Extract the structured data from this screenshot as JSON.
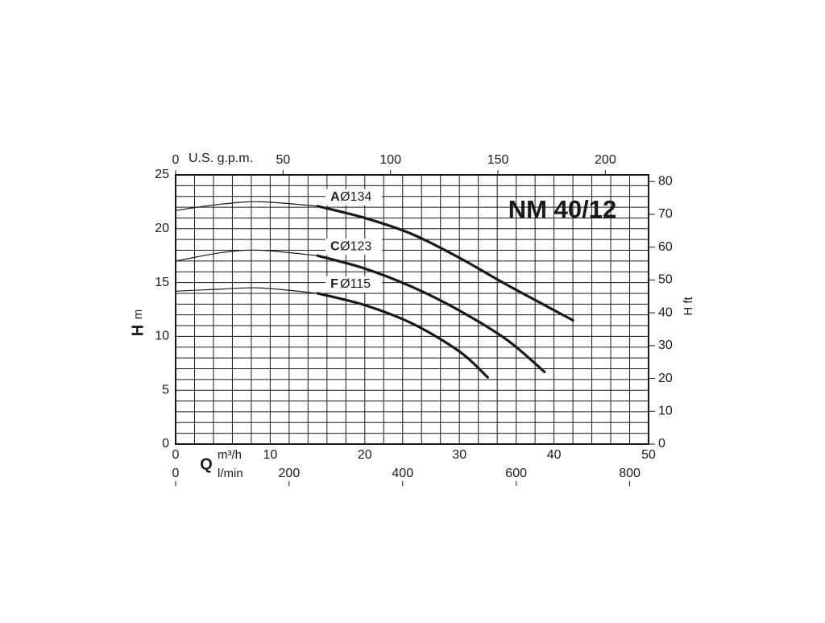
{
  "chart_data": {
    "type": "line",
    "title": "NM 40/12",
    "xlabel": "Q",
    "xunit": "m³/h",
    "ylabel": "H",
    "yunit": "m",
    "y2label": "H ft",
    "x2label": "U.S. g.p.m.",
    "x3label": "l/min",
    "xlim": [
      0,
      50
    ],
    "xticks": [
      0,
      10,
      20,
      30,
      40,
      50
    ],
    "ylim": [
      0,
      25
    ],
    "yticks": [
      0,
      5,
      10,
      15,
      20,
      25
    ],
    "y2lim": [
      0,
      82.02
    ],
    "y2ticks": [
      0,
      10,
      20,
      30,
      40,
      50,
      60,
      70,
      80
    ],
    "x2lim": [
      0,
      220.1
    ],
    "x2ticks": [
      0,
      50,
      100,
      150,
      200
    ],
    "x3lim": [
      0,
      833.3
    ],
    "x3ticks": [
      0,
      200,
      400,
      600,
      800
    ],
    "xgrid": [
      0,
      2,
      4,
      6,
      8,
      10,
      12,
      14,
      16,
      18,
      20,
      22,
      24,
      26,
      28,
      30,
      32,
      34,
      36,
      38,
      40,
      42,
      44,
      46,
      48,
      50
    ],
    "ygrid": [
      0,
      1,
      2,
      3,
      4,
      5,
      6,
      7,
      8,
      9,
      10,
      11,
      12,
      13,
      14,
      15,
      16,
      17,
      18,
      19,
      20,
      21,
      22,
      23,
      24,
      25
    ],
    "bold_from_x": 15,
    "series": [
      {
        "name": "A",
        "label": "Ø134",
        "color": "#1a1a1a",
        "x": [
          0,
          5,
          9,
          15,
          20,
          25,
          30,
          35,
          42
        ],
        "values": [
          21.7,
          22.3,
          22.5,
          22.1,
          21.0,
          19.5,
          17.3,
          14.8,
          11.5
        ]
      },
      {
        "name": "C",
        "label": "Ø123",
        "color": "#1a1a1a",
        "x": [
          0,
          5,
          9,
          15,
          20,
          25,
          30,
          35,
          39
        ],
        "values": [
          17.0,
          17.8,
          18.0,
          17.5,
          16.3,
          14.6,
          12.4,
          9.7,
          6.7
        ]
      },
      {
        "name": "F",
        "label": "Ø115",
        "color": "#1a1a1a",
        "x": [
          0,
          5,
          9,
          15,
          20,
          25,
          30,
          33
        ],
        "values": [
          14.2,
          14.4,
          14.5,
          14.0,
          12.9,
          11.2,
          8.6,
          6.2
        ]
      }
    ]
  }
}
